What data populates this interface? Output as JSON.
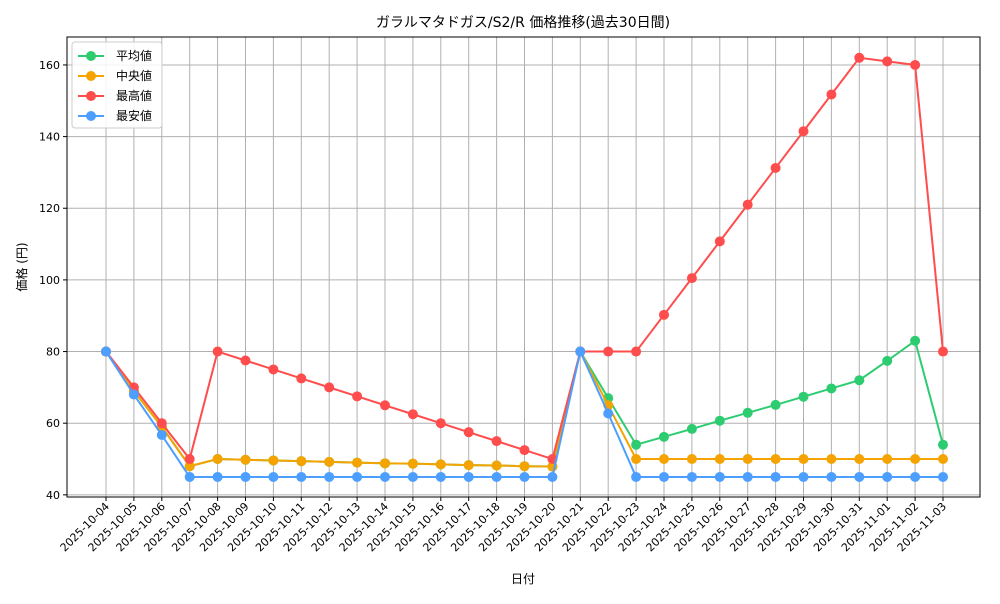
{
  "chart_data": {
    "type": "line",
    "title": "ガラルマタドガス/S2/R 価格推移(過去30日間)",
    "xlabel": "日付",
    "ylabel": "価格 (円)",
    "ylim": [
      39.4,
      167.8
    ],
    "yticks": [
      40,
      60,
      80,
      100,
      120,
      140,
      160
    ],
    "grid": true,
    "legend_position": "top-left",
    "categories": [
      "2025-10-04",
      "2025-10-05",
      "2025-10-06",
      "2025-10-07",
      "2025-10-08",
      "2025-10-09",
      "2025-10-10",
      "2025-10-11",
      "2025-10-12",
      "2025-10-13",
      "2025-10-14",
      "2025-10-15",
      "2025-10-16",
      "2025-10-17",
      "2025-10-18",
      "2025-10-19",
      "2025-10-20",
      "2025-10-21",
      "2025-10-22",
      "2025-10-23",
      "2025-10-24",
      "2025-10-25",
      "2025-10-26",
      "2025-10-27",
      "2025-10-28",
      "2025-10-29",
      "2025-10-30",
      "2025-10-31",
      "2025-11-01",
      "2025-11-02",
      "2025-11-03"
    ],
    "series": [
      {
        "name": "平均値",
        "color": "#2ecc71",
        "values": [
          80,
          69,
          59,
          48,
          50,
          49.8,
          49.6,
          49.4,
          49.2,
          49.0,
          48.8,
          48.7,
          48.5,
          48.3,
          48.2,
          48.0,
          47.9,
          80,
          67,
          54,
          56.2,
          58.4,
          60.7,
          62.9,
          65.1,
          67.4,
          69.7,
          72,
          77.4,
          83,
          54
        ]
      },
      {
        "name": "中央値",
        "color": "#f5a300",
        "values": [
          80,
          69,
          59,
          48,
          50,
          49.8,
          49.6,
          49.4,
          49.2,
          49.0,
          48.8,
          48.7,
          48.5,
          48.3,
          48.2,
          48.0,
          47.9,
          80,
          65,
          50,
          50,
          50,
          50,
          50,
          50,
          50,
          50,
          50,
          50,
          50,
          50
        ]
      },
      {
        "name": "最高値",
        "color": "#ff4d4d",
        "values": [
          80,
          70,
          60,
          50,
          80,
          77.5,
          75,
          72.5,
          70,
          67.5,
          65,
          62.5,
          60,
          57.5,
          55,
          52.5,
          50,
          80,
          80,
          80,
          90.25,
          100.5,
          110.75,
          121,
          131.25,
          141.5,
          151.75,
          162,
          161,
          160,
          80
        ]
      },
      {
        "name": "最安値",
        "color": "#4d9fff",
        "values": [
          80,
          68,
          56.7,
          45,
          45,
          45,
          45,
          45,
          45,
          45,
          45,
          45,
          45,
          45,
          45,
          45,
          45,
          80,
          62.7,
          45,
          45,
          45,
          45,
          45,
          45,
          45,
          45,
          45,
          45,
          45,
          45
        ]
      }
    ]
  }
}
